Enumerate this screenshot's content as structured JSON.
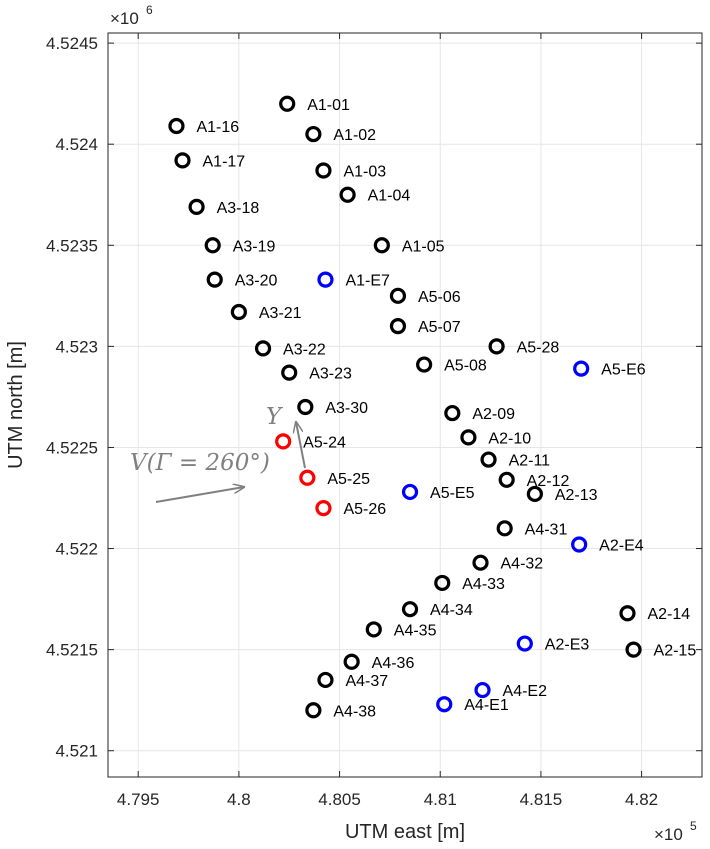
{
  "chart_data": {
    "type": "scatter",
    "title": "",
    "xlabel": "UTM east [m]",
    "ylabel": "UTM north [m]",
    "x_scale_exponent": "×10",
    "x_scale_power": "5",
    "y_scale_exponent": "×10",
    "y_scale_power": "6",
    "xlim": [
      479350,
      482300
    ],
    "ylim": [
      4520870,
      4524550
    ],
    "x_ticks": [
      479500,
      480000,
      480500,
      481000,
      481500,
      482000
    ],
    "x_tick_labels": [
      "4.795",
      "4.8",
      "4.805",
      "4.81",
      "4.815",
      "4.82"
    ],
    "y_ticks": [
      4521000,
      4521500,
      4522000,
      4522500,
      4523000,
      4523500,
      4524000,
      4524500
    ],
    "y_tick_labels": [
      "4.521",
      "4.5215",
      "4.522",
      "4.5225",
      "4.523",
      "4.5235",
      "4.524",
      "4.5245"
    ],
    "grid": true,
    "colors": {
      "black": "#000000",
      "blue": "#0000ff",
      "red": "#ff0000",
      "annotation": "#808080"
    },
    "points": [
      {
        "label": "A1-01",
        "x": 480240,
        "y": 4524200,
        "color": "black"
      },
      {
        "label": "A1-02",
        "x": 480370,
        "y": 4524050,
        "color": "black"
      },
      {
        "label": "A1-03",
        "x": 480420,
        "y": 4523870,
        "color": "black"
      },
      {
        "label": "A1-04",
        "x": 480540,
        "y": 4523750,
        "color": "black"
      },
      {
        "label": "A1-05",
        "x": 480710,
        "y": 4523500,
        "color": "black"
      },
      {
        "label": "A1-16",
        "x": 479690,
        "y": 4524090,
        "color": "black"
      },
      {
        "label": "A1-17",
        "x": 479720,
        "y": 4523920,
        "color": "black"
      },
      {
        "label": "A3-18",
        "x": 479790,
        "y": 4523690,
        "color": "black"
      },
      {
        "label": "A3-19",
        "x": 479870,
        "y": 4523500,
        "color": "black"
      },
      {
        "label": "A3-20",
        "x": 479880,
        "y": 4523330,
        "color": "black"
      },
      {
        "label": "A3-21",
        "x": 480000,
        "y": 4523170,
        "color": "black"
      },
      {
        "label": "A3-22",
        "x": 480120,
        "y": 4522990,
        "color": "black"
      },
      {
        "label": "A3-23",
        "x": 480250,
        "y": 4522870,
        "color": "black"
      },
      {
        "label": "A3-30",
        "x": 480330,
        "y": 4522700,
        "color": "black"
      },
      {
        "label": "A1-E7",
        "x": 480430,
        "y": 4523330,
        "color": "blue"
      },
      {
        "label": "A5-06",
        "x": 480790,
        "y": 4523250,
        "color": "black"
      },
      {
        "label": "A5-07",
        "x": 480790,
        "y": 4523100,
        "color": "black"
      },
      {
        "label": "A5-08",
        "x": 480920,
        "y": 4522910,
        "color": "black"
      },
      {
        "label": "A5-28",
        "x": 481280,
        "y": 4523000,
        "color": "black"
      },
      {
        "label": "A5-E6",
        "x": 481700,
        "y": 4522890,
        "color": "blue"
      },
      {
        "label": "A2-09",
        "x": 481060,
        "y": 4522670,
        "color": "black"
      },
      {
        "label": "A2-10",
        "x": 481140,
        "y": 4522550,
        "color": "black"
      },
      {
        "label": "A2-11",
        "x": 481240,
        "y": 4522440,
        "color": "black"
      },
      {
        "label": "A2-12",
        "x": 481330,
        "y": 4522340,
        "color": "black"
      },
      {
        "label": "A2-13",
        "x": 481470,
        "y": 4522270,
        "color": "black"
      },
      {
        "label": "A5-24",
        "x": 480220,
        "y": 4522530,
        "color": "red"
      },
      {
        "label": "A5-25",
        "x": 480340,
        "y": 4522350,
        "color": "red"
      },
      {
        "label": "A5-26",
        "x": 480420,
        "y": 4522200,
        "color": "red"
      },
      {
        "label": "A5-E5",
        "x": 480850,
        "y": 4522280,
        "color": "blue"
      },
      {
        "label": "A4-31",
        "x": 481320,
        "y": 4522100,
        "color": "black"
      },
      {
        "label": "A2-E4",
        "x": 481690,
        "y": 4522020,
        "color": "blue"
      },
      {
        "label": "A4-32",
        "x": 481200,
        "y": 4521930,
        "color": "black"
      },
      {
        "label": "A4-33",
        "x": 481010,
        "y": 4521830,
        "color": "black"
      },
      {
        "label": "A4-34",
        "x": 480850,
        "y": 4521700,
        "color": "black"
      },
      {
        "label": "A4-35",
        "x": 480670,
        "y": 4521600,
        "color": "black"
      },
      {
        "label": "A2-14",
        "x": 481930,
        "y": 4521680,
        "color": "black"
      },
      {
        "label": "A2-E3",
        "x": 481420,
        "y": 4521530,
        "color": "blue"
      },
      {
        "label": "A2-15",
        "x": 481960,
        "y": 4521500,
        "color": "black"
      },
      {
        "label": "A4-36",
        "x": 480560,
        "y": 4521440,
        "color": "black"
      },
      {
        "label": "A4-37",
        "x": 480430,
        "y": 4521350,
        "color": "black"
      },
      {
        "label": "A4-E2",
        "x": 481210,
        "y": 4521300,
        "color": "blue"
      },
      {
        "label": "A4-E1",
        "x": 481020,
        "y": 4521230,
        "color": "blue"
      },
      {
        "label": "A4-38",
        "x": 480370,
        "y": 4521200,
        "color": "black"
      }
    ],
    "annotations": {
      "v_label": "V(Γ = 260°)",
      "y_label": "Y"
    }
  }
}
